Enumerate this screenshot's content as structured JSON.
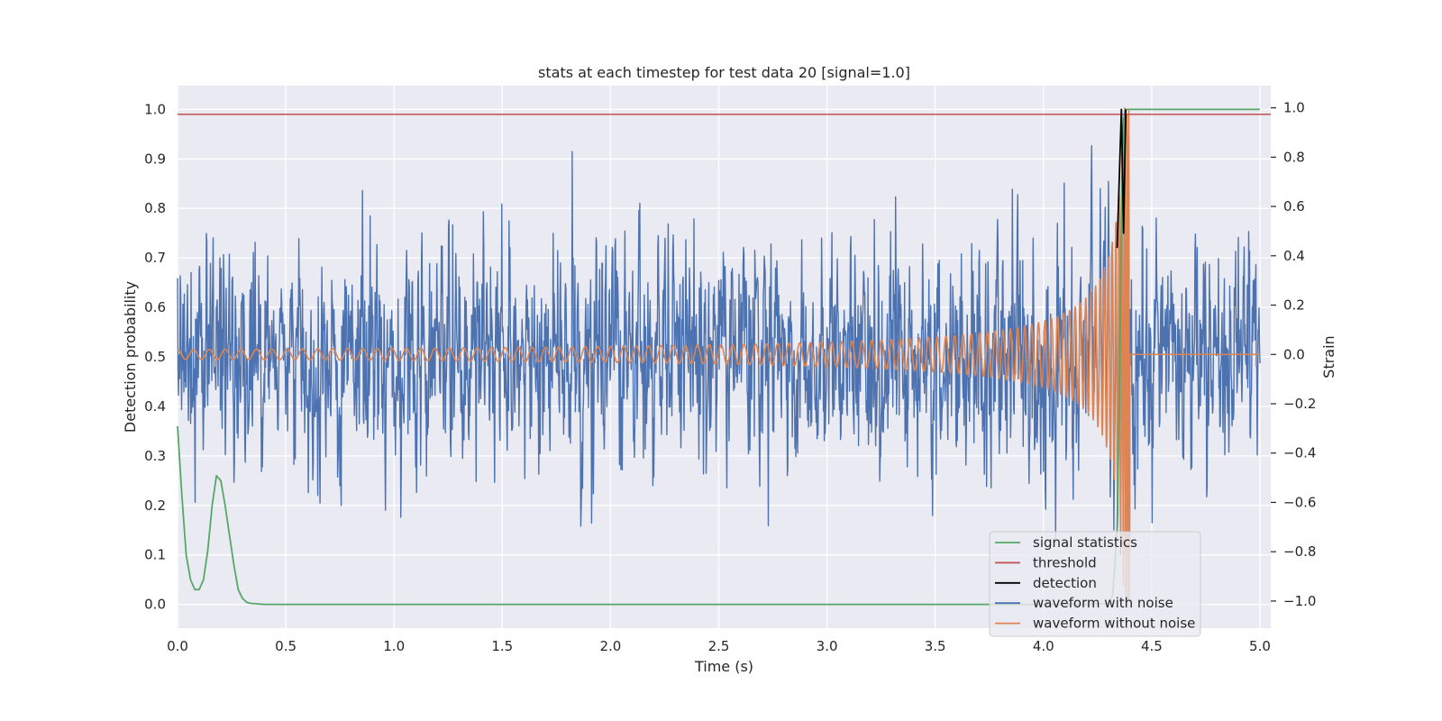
{
  "chart_data": {
    "type": "line",
    "title": "stats at each timestep for test data 20 [signal=1.0]",
    "xlabel": "Time (s)",
    "ylabel": "Detection probability",
    "y2label": "Strain",
    "xlim": [
      0.0,
      5.05
    ],
    "ylim": [
      -0.048,
      1.048
    ],
    "y2lim": [
      -1.11,
      1.09
    ],
    "grid": true,
    "legend_position": "lower-right",
    "x_ticks": [
      "0.0",
      "0.5",
      "1.0",
      "1.5",
      "2.0",
      "2.5",
      "3.0",
      "3.5",
      "4.0",
      "4.5",
      "5.0"
    ],
    "y_ticks": [
      "0.0",
      "0.1",
      "0.2",
      "0.3",
      "0.4",
      "0.5",
      "0.6",
      "0.7",
      "0.8",
      "0.9",
      "1.0"
    ],
    "y2_ticks": [
      "−1.0",
      "−0.8",
      "−0.6",
      "−0.4",
      "−0.2",
      "0.0",
      "0.2",
      "0.4",
      "0.6",
      "0.8",
      "1.0"
    ],
    "series": [
      {
        "name": "signal statistics",
        "axis": "left",
        "color": "#55a868",
        "x": [
          0.0,
          0.02,
          0.04,
          0.06,
          0.08,
          0.1,
          0.12,
          0.14,
          0.16,
          0.18,
          0.2,
          0.22,
          0.24,
          0.26,
          0.28,
          0.3,
          0.32,
          0.34,
          0.4,
          1.0,
          2.0,
          3.0,
          4.0,
          4.2,
          4.3,
          4.32,
          4.34,
          4.35,
          4.36,
          4.37,
          4.38,
          4.4,
          4.5,
          5.0
        ],
        "y": [
          0.36,
          0.22,
          0.1,
          0.05,
          0.03,
          0.03,
          0.05,
          0.11,
          0.2,
          0.26,
          0.25,
          0.2,
          0.14,
          0.08,
          0.03,
          0.012,
          0.004,
          0.002,
          0.0,
          0.0,
          0.0,
          0.0,
          0.0,
          0.0,
          0.002,
          0.02,
          0.15,
          0.4,
          0.8,
          0.98,
          1.0,
          1.0,
          1.0,
          1.0
        ]
      },
      {
        "name": "threshold",
        "axis": "left",
        "color": "#c44e52",
        "x": [
          0.0,
          5.05
        ],
        "y": [
          0.99,
          0.99
        ]
      },
      {
        "name": "detection",
        "axis": "left",
        "color": "#000000",
        "x": [
          4.34,
          4.36,
          4.37,
          4.38
        ],
        "y": [
          0.72,
          1.0,
          0.75,
          1.0
        ]
      },
      {
        "name": "waveform with noise",
        "axis": "right",
        "color": "#4c72b0",
        "x_range": [
          0.0,
          5.0
        ],
        "typical_range": [
          -0.55,
          0.55
        ],
        "extremes": [
          -0.81,
          0.9
        ]
      },
      {
        "name": "waveform without noise",
        "axis": "right",
        "color": "#dd8452",
        "x_range": [
          0.0,
          5.0
        ],
        "chirp_end": 4.4,
        "amplitude_start": 0.02,
        "amplitude_peak": 1.0
      }
    ],
    "legend": [
      {
        "label": "signal statistics",
        "color": "#55a868"
      },
      {
        "label": "threshold",
        "color": "#c44e52"
      },
      {
        "label": "detection",
        "color": "#000000"
      },
      {
        "label": "waveform with noise",
        "color": "#4c72b0"
      },
      {
        "label": "waveform without noise",
        "color": "#dd8452"
      }
    ]
  }
}
